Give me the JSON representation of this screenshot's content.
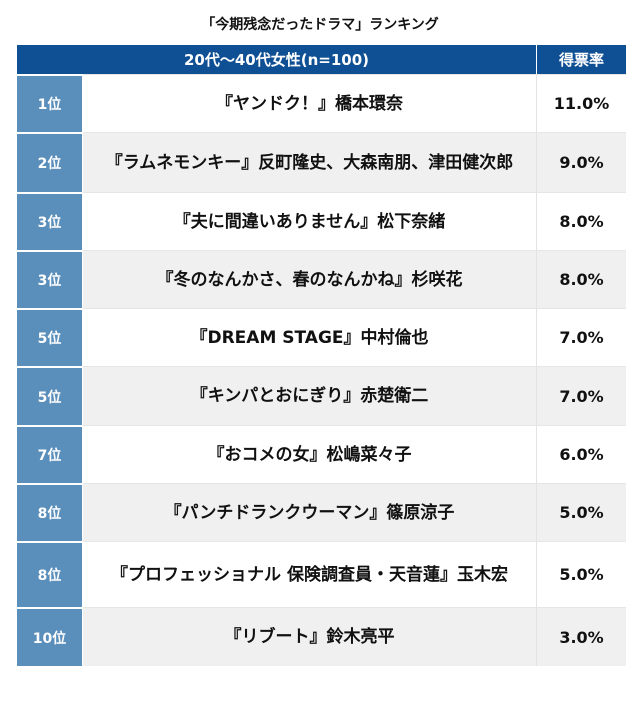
{
  "title": "「今期残念だったドラマ」ランキング",
  "header": {
    "group": "20代〜40代女性(n=100)",
    "rate": "得票率"
  },
  "rows": [
    {
      "rank": "1位",
      "name": "『ヤンドク！』橋本環奈",
      "rate": "11.0%"
    },
    {
      "rank": "2位",
      "name": "『ラムネモンキー』反町隆史、大森南朋、津田健次郎",
      "rate": "9.0%"
    },
    {
      "rank": "3位",
      "name": "『夫に間違いありません』松下奈緒",
      "rate": "8.0%"
    },
    {
      "rank": "3位",
      "name": "『冬のなんかさ、春のなんかね』杉咲花",
      "rate": "8.0%"
    },
    {
      "rank": "5位",
      "name": "『DREAM STAGE』中村倫也",
      "rate": "7.0%"
    },
    {
      "rank": "5位",
      "name": "『キンパとおにぎり』赤楚衛二",
      "rate": "7.0%"
    },
    {
      "rank": "7位",
      "name": "『おコメの女』松嶋菜々子",
      "rate": "6.0%"
    },
    {
      "rank": "8位",
      "name": "『パンチドランクウーマン』篠原涼子",
      "rate": "5.0%"
    },
    {
      "rank": "8位",
      "name": "『プロフェッショナル 保険調査員・天音蓮』玉木宏",
      "rate": "5.0%"
    },
    {
      "rank": "10位",
      "name": "『リブート』鈴木亮平",
      "rate": "3.0%"
    }
  ],
  "colors": {
    "header_bg": "#0f4f93",
    "rank_bg": "#5b8fbb",
    "row_alt_bg": "#f0f0f0"
  }
}
